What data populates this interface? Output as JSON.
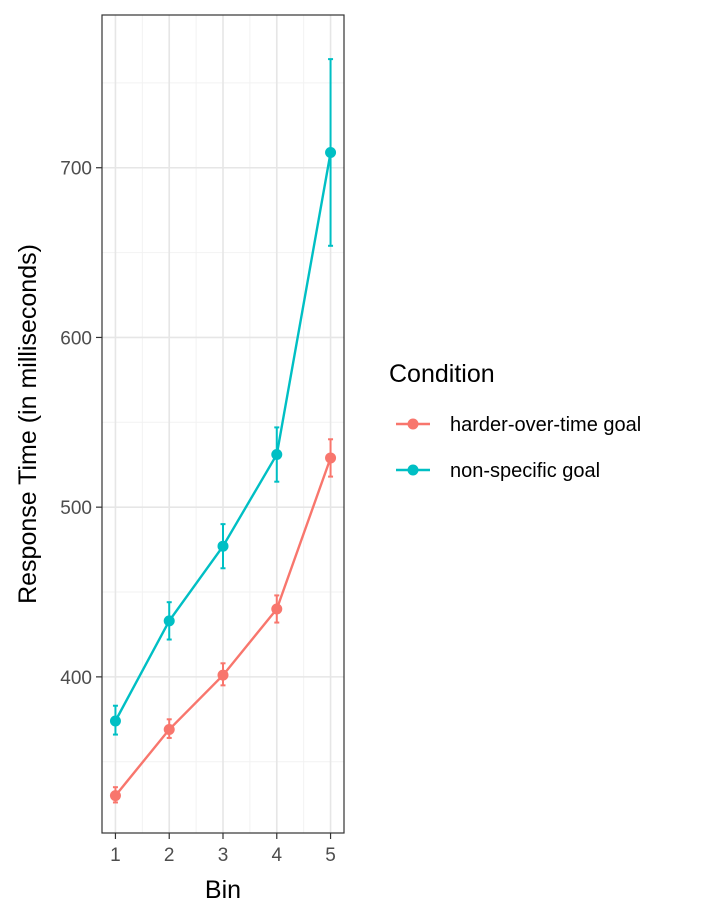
{
  "chart_data": {
    "type": "line",
    "title": "",
    "xlabel": "Bin",
    "ylabel": "Response Time (in milliseconds)",
    "x": [
      1,
      2,
      3,
      4,
      5
    ],
    "x_ticks": [
      "1",
      "2",
      "3",
      "4",
      "5"
    ],
    "xlim": [
      0.75,
      5.25
    ],
    "ylim": [
      308,
      790
    ],
    "y_ticks": [
      400,
      500,
      600,
      700
    ],
    "y_tick_labels": [
      "400",
      "500",
      "600",
      "700"
    ],
    "y_minor": [
      350,
      450,
      550,
      650,
      750
    ],
    "grid": true,
    "legend": {
      "title": "Condition",
      "position": "right"
    },
    "series": [
      {
        "name": "harder-over-time goal",
        "color": "#F8766D",
        "values": [
          330,
          369,
          401,
          440,
          529
        ],
        "error_low": [
          326,
          364,
          395,
          432,
          518
        ],
        "error_high": [
          335,
          375,
          408,
          448,
          540
        ]
      },
      {
        "name": "non-specific goal",
        "color": "#00BFC4",
        "values": [
          374,
          433,
          477,
          531,
          709
        ],
        "error_low": [
          366,
          422,
          464,
          515,
          654
        ],
        "error_high": [
          383,
          444,
          490,
          547,
          764
        ]
      }
    ]
  }
}
